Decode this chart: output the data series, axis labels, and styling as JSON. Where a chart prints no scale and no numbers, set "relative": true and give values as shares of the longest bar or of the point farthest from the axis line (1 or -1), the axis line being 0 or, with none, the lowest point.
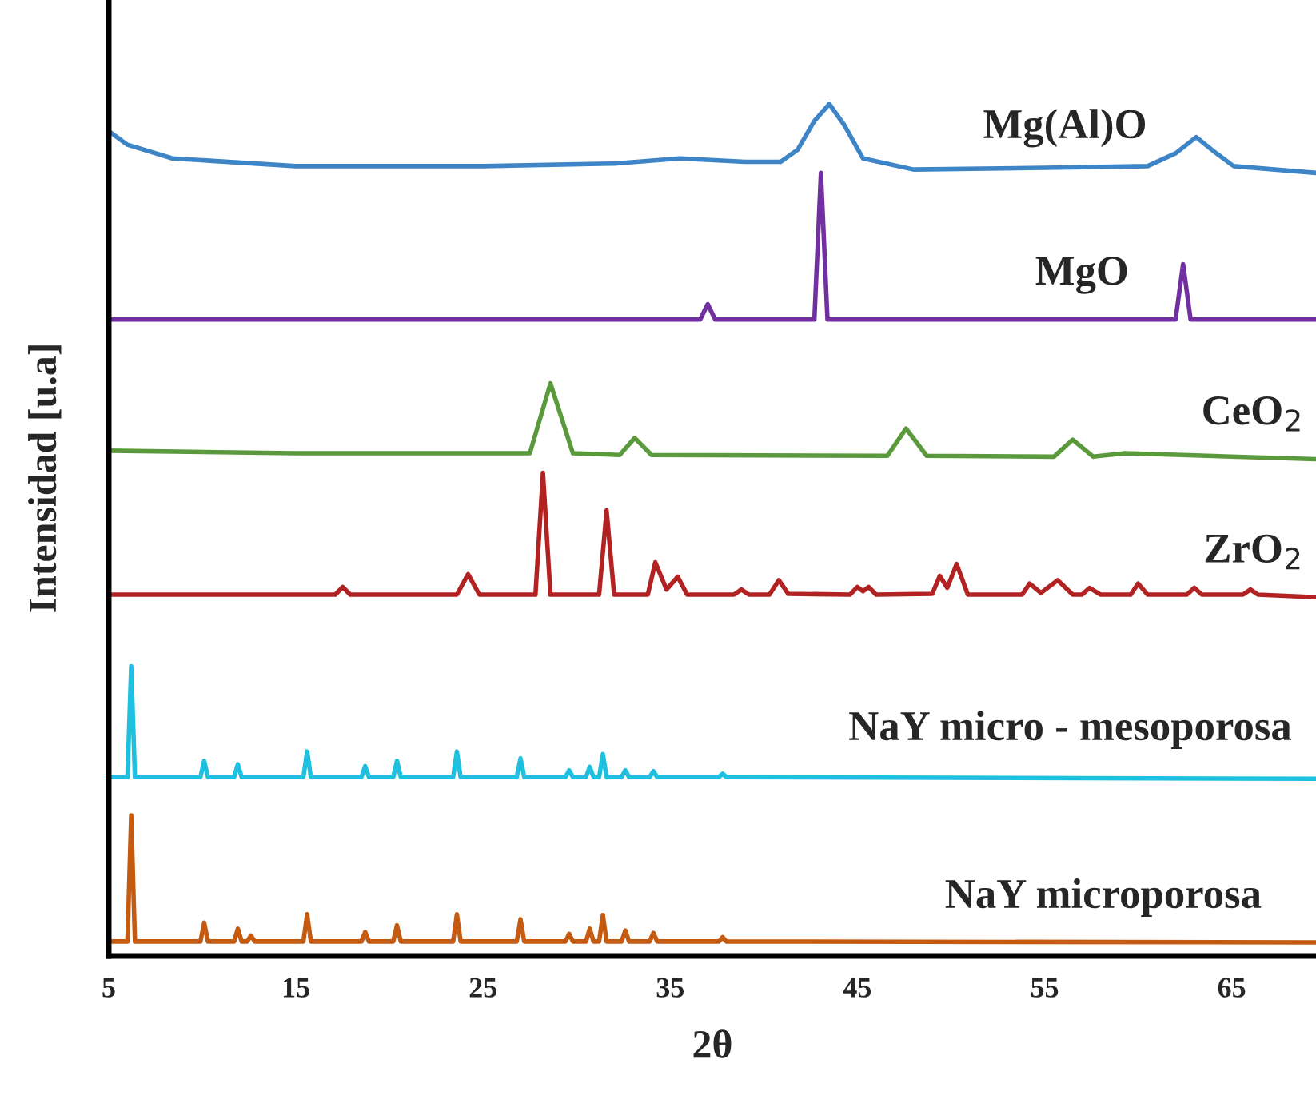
{
  "chart_data": {
    "type": "line",
    "relative": true,
    "xlabel": "2θ",
    "ylabel": "Intensidad [u.a]",
    "xlim": [
      5,
      69.5
    ],
    "xticks": [
      5,
      15,
      25,
      35,
      45,
      55,
      65
    ],
    "series": [
      {
        "name": "Mg(Al)O",
        "color": "#3d85c6",
        "x": [
          5,
          6,
          8.4,
          15,
          25,
          32,
          35.5,
          39,
          40.9,
          41.8,
          42.7,
          43.5,
          44.3,
          45.3,
          48,
          55,
          60.5,
          62,
          63.1,
          64,
          65.1,
          69.5
        ],
        "values": [
          0.968,
          0.952,
          0.936,
          0.927,
          0.927,
          0.93,
          0.936,
          0.932,
          0.932,
          0.946,
          0.98,
          1.0,
          0.975,
          0.936,
          0.923,
          0.925,
          0.927,
          0.942,
          0.961,
          0.945,
          0.927,
          0.919
        ]
      },
      {
        "name": "MgO",
        "color": "#7030a0",
        "x": [
          5,
          36.6,
          37.0,
          37.4,
          42.7,
          43.05,
          43.4,
          62.0,
          62.4,
          62.8,
          69.5
        ],
        "values": [
          0.747,
          0.747,
          0.765,
          0.747,
          0.747,
          0.919,
          0.747,
          0.747,
          0.812,
          0.747,
          0.747
        ]
      },
      {
        "name": "CeO$_{2}$",
        "color": "#5a9a3c",
        "x": [
          5,
          15,
          27.5,
          28.6,
          29.8,
          32.3,
          33.1,
          34.0,
          46.6,
          47.6,
          48.7,
          55.5,
          56.5,
          57.6,
          59.3,
          69.5
        ],
        "values": [
          0.593,
          0.59,
          0.59,
          0.672,
          0.59,
          0.588,
          0.608,
          0.588,
          0.587,
          0.619,
          0.587,
          0.586,
          0.606,
          0.586,
          0.59,
          0.583
        ]
      },
      {
        "name": "ZrO$_{2}$",
        "color": "#b22222",
        "x": [
          5,
          17.1,
          17.5,
          17.9,
          23.6,
          24.2,
          24.8,
          27.8,
          28.2,
          28.6,
          31.2,
          31.6,
          32.0,
          33.8,
          34.2,
          34.8,
          35.4,
          35.9,
          38.4,
          38.8,
          39.2,
          40.3,
          40.8,
          41.3,
          44.6,
          45,
          45.3,
          45.6,
          46,
          49,
          49.4,
          49.8,
          50.3,
          50.9,
          53.8,
          54.2,
          54.8,
          55.7,
          56.5,
          57,
          57.4,
          58,
          59.6,
          60,
          60.5,
          62.6,
          63,
          63.4,
          65.6,
          66,
          66.4,
          69.5
        ],
        "values": [
          0.424,
          0.424,
          0.433,
          0.424,
          0.424,
          0.448,
          0.424,
          0.424,
          0.567,
          0.424,
          0.424,
          0.523,
          0.424,
          0.424,
          0.462,
          0.43,
          0.445,
          0.424,
          0.424,
          0.43,
          0.424,
          0.424,
          0.441,
          0.425,
          0.424,
          0.433,
          0.428,
          0.433,
          0.424,
          0.425,
          0.446,
          0.432,
          0.46,
          0.424,
          0.424,
          0.437,
          0.426,
          0.441,
          0.424,
          0.424,
          0.432,
          0.424,
          0.424,
          0.437,
          0.424,
          0.424,
          0.432,
          0.424,
          0.424,
          0.43,
          0.424,
          0.421
        ]
      },
      {
        "name": "NaY micro - mesoporosa",
        "color": "#1fbfe0",
        "x": [
          5,
          6.0,
          6.2,
          6.4,
          9.9,
          10.1,
          10.3,
          11.7,
          11.9,
          12.1,
          15.4,
          15.6,
          15.8,
          18.5,
          18.7,
          18.9,
          20.2,
          20.4,
          20.6,
          23.4,
          23.6,
          23.8,
          26.8,
          27.0,
          27.2,
          29.4,
          29.6,
          29.8,
          30.5,
          30.7,
          30.9,
          31.2,
          31.4,
          31.6,
          32.4,
          32.6,
          32.8,
          33.9,
          34.1,
          34.3,
          37.6,
          37.8,
          38.0,
          69.5
        ],
        "values": [
          0.21,
          0.21,
          0.34,
          0.21,
          0.21,
          0.229,
          0.21,
          0.21,
          0.225,
          0.21,
          0.21,
          0.24,
          0.21,
          0.21,
          0.223,
          0.21,
          0.21,
          0.229,
          0.21,
          0.21,
          0.24,
          0.21,
          0.21,
          0.232,
          0.21,
          0.21,
          0.218,
          0.21,
          0.21,
          0.222,
          0.21,
          0.21,
          0.237,
          0.21,
          0.21,
          0.218,
          0.21,
          0.21,
          0.217,
          0.21,
          0.21,
          0.214,
          0.21,
          0.208
        ]
      },
      {
        "name": "NaY microporosa",
        "color": "#c55a11",
        "x": [
          5,
          6.0,
          6.2,
          6.4,
          9.9,
          10.1,
          10.3,
          11.7,
          11.9,
          12.1,
          12.4,
          12.6,
          12.8,
          15.4,
          15.6,
          15.8,
          18.5,
          18.7,
          18.9,
          20.2,
          20.4,
          20.6,
          23.4,
          23.6,
          23.8,
          26.8,
          27.0,
          27.2,
          29.4,
          29.6,
          29.8,
          30.5,
          30.7,
          30.9,
          31.2,
          31.4,
          31.6,
          32.4,
          32.6,
          32.8,
          33.9,
          34.1,
          34.3,
          37.6,
          37.8,
          38.0,
          69.5
        ],
        "values": [
          0.017,
          0.017,
          0.165,
          0.017,
          0.017,
          0.039,
          0.017,
          0.017,
          0.032,
          0.017,
          0.017,
          0.024,
          0.017,
          0.017,
          0.049,
          0.017,
          0.017,
          0.028,
          0.017,
          0.017,
          0.036,
          0.017,
          0.017,
          0.049,
          0.017,
          0.017,
          0.043,
          0.017,
          0.017,
          0.026,
          0.017,
          0.017,
          0.032,
          0.017,
          0.017,
          0.048,
          0.017,
          0.017,
          0.03,
          0.017,
          0.017,
          0.027,
          0.017,
          0.017,
          0.022,
          0.017,
          0.016
        ]
      }
    ]
  }
}
